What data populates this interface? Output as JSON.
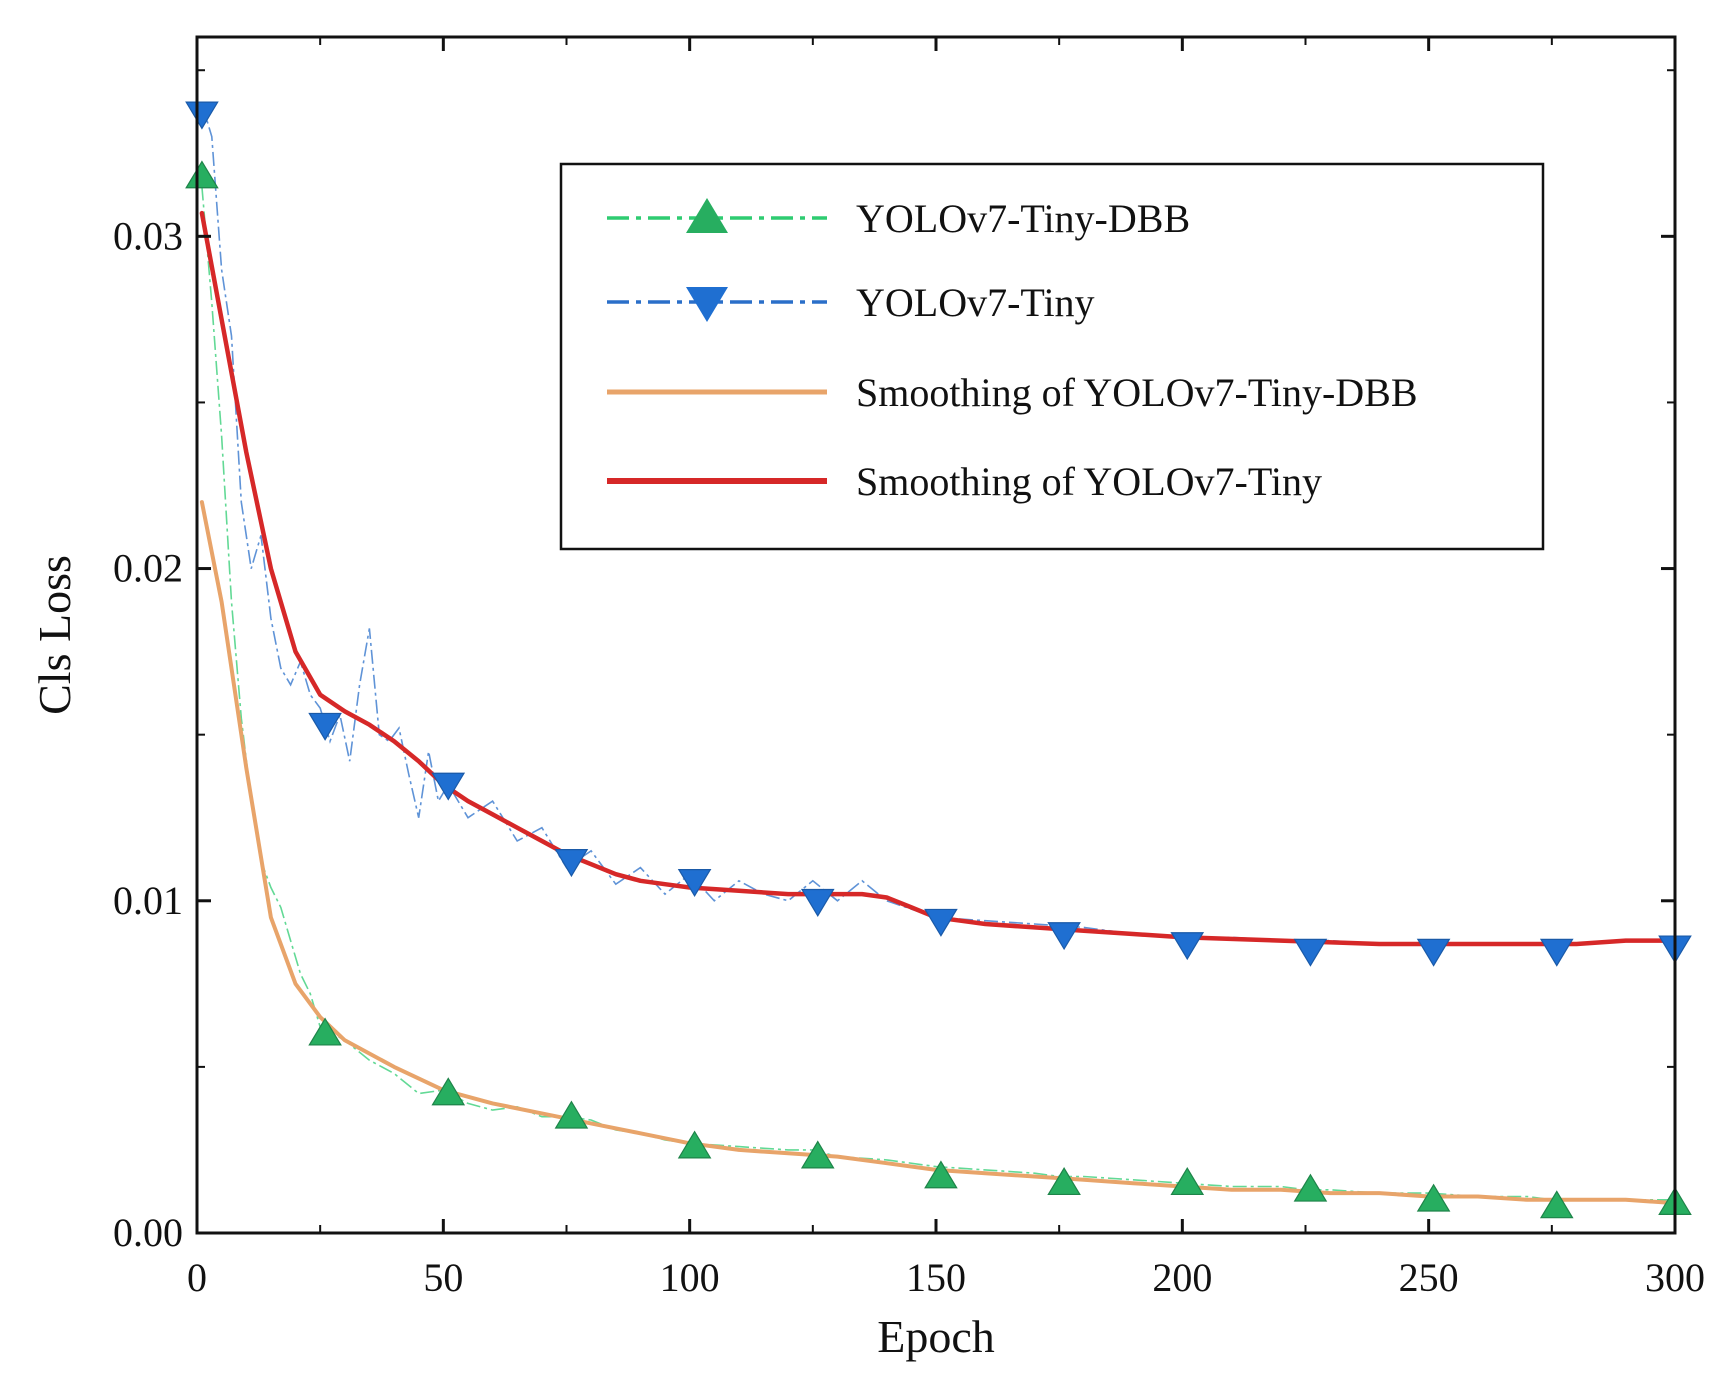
{
  "chart_data": {
    "type": "line",
    "xlabel": "Epoch",
    "ylabel": "Cls Loss",
    "xlim": [
      0,
      300
    ],
    "ylim": [
      0,
      0.036
    ],
    "xticks": [
      "0",
      "50",
      "100",
      "150",
      "200",
      "250",
      "300"
    ],
    "yticks": [
      "0.00",
      "0.01",
      "0.02",
      "0.03"
    ],
    "grid": false,
    "legend_position": "top-right",
    "series": [
      {
        "name": "YOLOv7-Tiny-DBB",
        "style": "dash-dot",
        "marker": "triangle-up",
        "color": "#2ecc71",
        "marker_color": "#27ae60",
        "x": [
          1,
          3,
          5,
          7,
          9,
          11,
          13,
          15,
          17,
          19,
          21,
          23,
          25,
          30,
          35,
          40,
          45,
          50,
          55,
          60,
          65,
          70,
          75,
          80,
          85,
          90,
          95,
          100,
          110,
          120,
          125,
          130,
          140,
          150,
          160,
          170,
          175,
          180,
          190,
          200,
          210,
          220,
          225,
          230,
          240,
          250,
          260,
          270,
          275,
          280,
          290,
          300
        ],
        "y": [
          0.0315,
          0.028,
          0.024,
          0.019,
          0.0155,
          0.013,
          0.0112,
          0.0104,
          0.0098,
          0.0088,
          0.0078,
          0.0072,
          0.0062,
          0.0058,
          0.0052,
          0.0048,
          0.0042,
          0.0043,
          0.0039,
          0.0037,
          0.0038,
          0.0035,
          0.0035,
          0.0034,
          0.0031,
          0.003,
          0.0028,
          0.0027,
          0.0026,
          0.0025,
          0.0025,
          0.0023,
          0.0022,
          0.002,
          0.0019,
          0.0018,
          0.0017,
          0.0017,
          0.0016,
          0.0015,
          0.0014,
          0.0014,
          0.0013,
          0.0013,
          0.0012,
          0.0012,
          0.0011,
          0.0011,
          0.001,
          0.001,
          0.001,
          0.001
        ],
        "marker_x": [
          1,
          26,
          51,
          76,
          101,
          126,
          151,
          176,
          201,
          226,
          251,
          276,
          300
        ],
        "marker_y": [
          0.0318,
          0.006,
          0.0042,
          0.0035,
          0.0026,
          0.0023,
          0.0017,
          0.0015,
          0.0015,
          0.0013,
          0.001,
          0.0008,
          0.0009
        ]
      },
      {
        "name": "YOLOv7-Tiny",
        "style": "dash-dot",
        "marker": "triangle-down",
        "color": "#2a6fc9",
        "marker_color": "#1f6fd1",
        "x": [
          1,
          3,
          5,
          7,
          9,
          11,
          13,
          15,
          17,
          19,
          21,
          23,
          25,
          27,
          29,
          31,
          33,
          35,
          37,
          39,
          41,
          43,
          45,
          47,
          49,
          51,
          55,
          60,
          65,
          70,
          75,
          80,
          85,
          90,
          95,
          100,
          105,
          110,
          115,
          120,
          125,
          130,
          135,
          140,
          150,
          160,
          170,
          180,
          190,
          200,
          210,
          220,
          230,
          240,
          250,
          260,
          270,
          280,
          290,
          300
        ],
        "y": [
          0.034,
          0.033,
          0.029,
          0.027,
          0.022,
          0.02,
          0.021,
          0.0185,
          0.017,
          0.0165,
          0.0172,
          0.0162,
          0.0158,
          0.0148,
          0.0156,
          0.0142,
          0.0165,
          0.0182,
          0.015,
          0.0148,
          0.0152,
          0.0138,
          0.0125,
          0.0145,
          0.013,
          0.0135,
          0.0125,
          0.013,
          0.0118,
          0.0122,
          0.011,
          0.0115,
          0.0105,
          0.011,
          0.0102,
          0.0108,
          0.01,
          0.0106,
          0.0102,
          0.01,
          0.0106,
          0.01,
          0.0106,
          0.01,
          0.0095,
          0.0094,
          0.0093,
          0.0092,
          0.009,
          0.0089,
          0.0089,
          0.0088,
          0.0088,
          0.0087,
          0.0087,
          0.0087,
          0.0087,
          0.0087,
          0.0088,
          0.0088
        ],
        "marker_x": [
          1,
          26,
          51,
          76,
          101,
          126,
          151,
          176,
          201,
          226,
          251,
          276,
          300
        ],
        "marker_y": [
          0.0337,
          0.0153,
          0.0135,
          0.0112,
          0.0106,
          0.01,
          0.0094,
          0.009,
          0.0087,
          0.0085,
          0.0085,
          0.0085,
          0.0086
        ]
      },
      {
        "name": "Smoothing of YOLOv7-Tiny-DBB",
        "style": "solid",
        "color": "#e8a46a",
        "x": [
          1,
          5,
          10,
          15,
          20,
          25,
          30,
          40,
          50,
          60,
          70,
          80,
          90,
          100,
          110,
          120,
          130,
          140,
          150,
          160,
          170,
          180,
          190,
          200,
          210,
          220,
          230,
          240,
          250,
          260,
          270,
          280,
          290,
          300
        ],
        "y": [
          0.022,
          0.019,
          0.014,
          0.0095,
          0.0075,
          0.0065,
          0.0058,
          0.005,
          0.0043,
          0.0039,
          0.0036,
          0.0033,
          0.003,
          0.0027,
          0.0025,
          0.0024,
          0.0023,
          0.0021,
          0.0019,
          0.0018,
          0.0017,
          0.0016,
          0.0015,
          0.0014,
          0.0013,
          0.0013,
          0.0012,
          0.0012,
          0.0011,
          0.0011,
          0.001,
          0.001,
          0.001,
          0.0009
        ]
      },
      {
        "name": "Smoothing of YOLOv7-Tiny",
        "style": "solid",
        "color": "#d62828",
        "x": [
          1,
          5,
          10,
          15,
          20,
          25,
          30,
          35,
          40,
          45,
          50,
          55,
          60,
          65,
          70,
          75,
          80,
          85,
          90,
          95,
          100,
          110,
          120,
          130,
          135,
          140,
          145,
          150,
          155,
          160,
          170,
          180,
          190,
          200,
          220,
          240,
          260,
          280,
          290,
          300
        ],
        "y": [
          0.0307,
          0.0275,
          0.0235,
          0.02,
          0.0175,
          0.0162,
          0.0157,
          0.0153,
          0.0148,
          0.0142,
          0.0135,
          0.013,
          0.0126,
          0.0122,
          0.0118,
          0.0114,
          0.0111,
          0.0108,
          0.0106,
          0.0105,
          0.0104,
          0.0103,
          0.0102,
          0.0102,
          0.0102,
          0.0101,
          0.0098,
          0.0095,
          0.0094,
          0.0093,
          0.0092,
          0.0091,
          0.009,
          0.0089,
          0.0088,
          0.0087,
          0.0087,
          0.0087,
          0.0088,
          0.0088
        ]
      }
    ]
  }
}
